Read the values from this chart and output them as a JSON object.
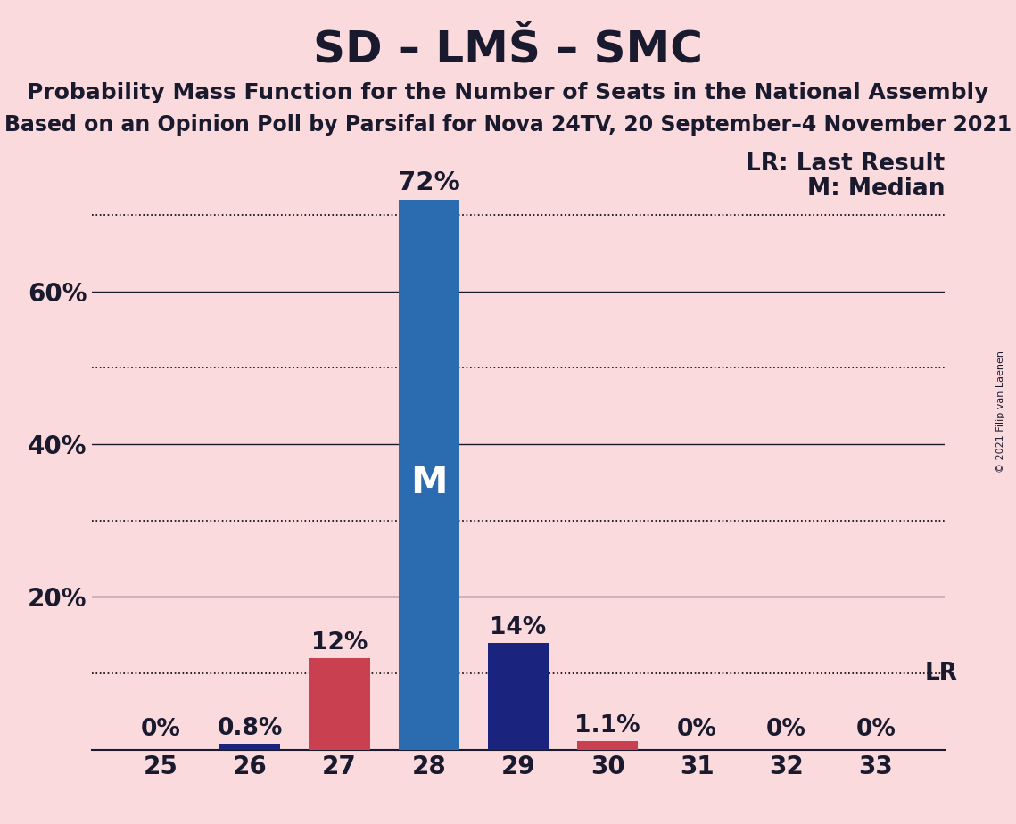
{
  "title": "SD – LMŠ – SMC",
  "subtitle1": "Probability Mass Function for the Number of Seats in the National Assembly",
  "subtitle2": "Based on an Opinion Poll by Parsifal for Nova 24TV, 20 September–4 November 2021",
  "copyright": "© 2021 Filip van Laenen",
  "categories": [
    25,
    26,
    27,
    28,
    29,
    30,
    31,
    32,
    33
  ],
  "values": [
    0.0,
    0.8,
    12.0,
    72.0,
    14.0,
    1.1,
    0.0,
    0.0,
    0.0
  ],
  "bar_colors": [
    "#fadadd",
    "#1a237e",
    "#c94050",
    "#2b6bb0",
    "#1a237e",
    "#c94050",
    "#fadadd",
    "#fadadd",
    "#fadadd"
  ],
  "labels": [
    "0%",
    "0.8%",
    "12%",
    "72%",
    "14%",
    "1.1%",
    "0%",
    "0%",
    "0%"
  ],
  "median_bar": 28,
  "lr_value": 10.0,
  "background_color": "#fadadd",
  "ylim": [
    0,
    76
  ],
  "solid_yticks": [
    20,
    40,
    60
  ],
  "dotted_yticks": [
    10,
    30,
    50,
    70
  ],
  "legend_lr": "LR: Last Result",
  "legend_m": "M: Median",
  "bar_width": 0.68,
  "title_fontsize": 36,
  "subtitle_fontsize": 18,
  "label_fontsize": 19,
  "axis_fontsize": 20,
  "median_label_color": "#ffffff",
  "median_label_fontsize": 30
}
